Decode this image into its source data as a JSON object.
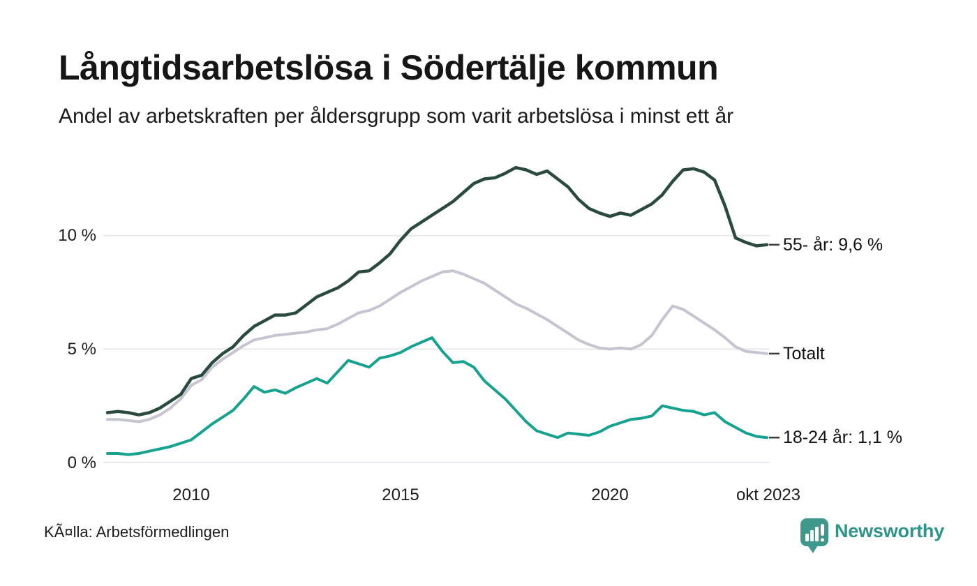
{
  "header": {
    "title": "Långtidsarbetslösa i Södertälje kommun",
    "subtitle": "Andel av arbetskraften per åldersgrupp som varit arbetslösa i minst ett år"
  },
  "footer": {
    "source": "KÃ¤lla: Arbetsförmedlingen",
    "brand_wordmark": "Newsworthy"
  },
  "branding": {
    "logo_icon": "newsworthy-speech-bubble-bar-chart",
    "icon_color": "#3E988B",
    "wordmark_color": "#2F948A"
  },
  "chart_data": {
    "type": "line",
    "title": "Långtidsarbetslösa i Södertälje kommun",
    "subtitle": "Andel av arbetskraften per åldersgrupp som varit arbetslösa i minst ett år",
    "x_unit": "decimal year, quarterly samples",
    "xlim": [
      2008,
      2023.83
    ],
    "ylim": [
      0,
      13.6
    ],
    "grid": "horizontal gridlines at 0/5/10 %",
    "legend_position": "end-of-line labels at right edge",
    "x": [
      2008.0,
      2008.25,
      2008.5,
      2008.75,
      2009.0,
      2009.25,
      2009.5,
      2009.75,
      2010.0,
      2010.25,
      2010.5,
      2010.75,
      2011.0,
      2011.25,
      2011.5,
      2011.75,
      2012.0,
      2012.25,
      2012.5,
      2012.75,
      2013.0,
      2013.25,
      2013.5,
      2013.75,
      2014.0,
      2014.25,
      2014.5,
      2014.75,
      2015.0,
      2015.25,
      2015.5,
      2015.75,
      2016.0,
      2016.25,
      2016.5,
      2016.75,
      2017.0,
      2017.25,
      2017.5,
      2017.75,
      2018.0,
      2018.25,
      2018.5,
      2018.75,
      2019.0,
      2019.25,
      2019.5,
      2019.75,
      2020.0,
      2020.25,
      2020.5,
      2020.75,
      2021.0,
      2021.25,
      2021.5,
      2021.75,
      2022.0,
      2022.25,
      2022.5,
      2022.75,
      2023.0,
      2023.25,
      2023.5,
      2023.75
    ],
    "series": [
      {
        "name": "55- år",
        "end_label": "55- år: 9,6 %",
        "end_value": 9.6,
        "color": "#2B4A3E",
        "values": [
          2.2,
          2.25,
          2.2,
          2.1,
          2.2,
          2.4,
          2.7,
          3.0,
          3.7,
          3.85,
          4.4,
          4.8,
          5.1,
          5.6,
          6.0,
          6.25,
          6.5,
          6.5,
          6.6,
          6.95,
          7.3,
          7.5,
          7.7,
          8.0,
          8.4,
          8.45,
          8.8,
          9.2,
          9.8,
          10.3,
          10.6,
          10.9,
          11.2,
          11.5,
          11.9,
          12.3,
          12.5,
          12.55,
          12.75,
          13.0,
          12.9,
          12.7,
          12.85,
          12.5,
          12.15,
          11.6,
          11.2,
          11.0,
          10.85,
          11.0,
          10.9,
          11.15,
          11.4,
          11.8,
          12.4,
          12.9,
          12.95,
          12.8,
          12.45,
          11.3,
          9.9,
          9.7,
          9.55,
          9.6
        ]
      },
      {
        "name": "Totalt",
        "end_label": "Totalt",
        "end_value": 4.8,
        "color": "#C6C4D0",
        "values": [
          1.9,
          1.9,
          1.85,
          1.8,
          1.9,
          2.1,
          2.4,
          2.8,
          3.4,
          3.65,
          4.2,
          4.55,
          4.85,
          5.15,
          5.4,
          5.5,
          5.6,
          5.65,
          5.7,
          5.75,
          5.85,
          5.9,
          6.1,
          6.35,
          6.6,
          6.7,
          6.9,
          7.2,
          7.5,
          7.75,
          8.0,
          8.2,
          8.4,
          8.45,
          8.3,
          8.1,
          7.9,
          7.6,
          7.3,
          7.0,
          6.8,
          6.55,
          6.3,
          6.0,
          5.7,
          5.4,
          5.2,
          5.05,
          5.0,
          5.05,
          5.0,
          5.2,
          5.6,
          6.3,
          6.9,
          6.75,
          6.45,
          6.15,
          5.85,
          5.5,
          5.1,
          4.9,
          4.85,
          4.8
        ]
      },
      {
        "name": "18-24 år",
        "end_label": "18-24 år: 1,1 %",
        "end_value": 1.1,
        "color": "#17A290",
        "values": [
          0.4,
          0.4,
          0.35,
          0.4,
          0.5,
          0.6,
          0.7,
          0.85,
          1.0,
          1.35,
          1.7,
          2.0,
          2.3,
          2.8,
          3.35,
          3.1,
          3.2,
          3.05,
          3.3,
          3.5,
          3.7,
          3.5,
          4.0,
          4.5,
          4.35,
          4.2,
          4.6,
          4.7,
          4.85,
          5.1,
          5.3,
          5.5,
          4.9,
          4.4,
          4.45,
          4.2,
          3.6,
          3.2,
          2.8,
          2.3,
          1.8,
          1.4,
          1.25,
          1.1,
          1.3,
          1.25,
          1.2,
          1.35,
          1.6,
          1.75,
          1.9,
          1.95,
          2.05,
          2.5,
          2.4,
          2.3,
          2.25,
          2.1,
          2.2,
          1.8,
          1.55,
          1.3,
          1.15,
          1.1
        ]
      }
    ],
    "yticks": [
      {
        "value": 10,
        "label": "10 %"
      },
      {
        "value": 5,
        "label": "5 %"
      },
      {
        "value": 0,
        "label": "0 %"
      }
    ],
    "xticks": [
      {
        "value": 2010,
        "label": "2010"
      },
      {
        "value": 2015,
        "label": "2015"
      },
      {
        "value": 2020,
        "label": "2020"
      },
      {
        "value": 2023.79,
        "label": "okt 2023"
      }
    ],
    "gridline_color": "#E9E8EC",
    "end_tick_color": "#3C3C3C"
  }
}
